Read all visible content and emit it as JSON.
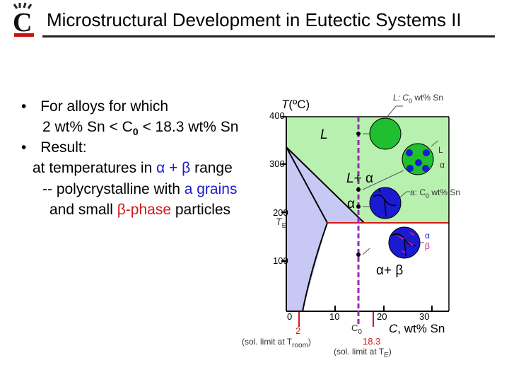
{
  "slide": {
    "title": "Microstructural Development in Eutectic Systems II"
  },
  "bullets": {
    "b1_marker": "•",
    "b1_line1": "For alloys for which",
    "b1_line2_pre": "2 wt% Sn < C",
    "b1_line2_sub": "0",
    "b1_line2_post": " < 18.3 wt% Sn",
    "b2_marker": "•",
    "b2_line1": "Result:",
    "b2_line2_pre": "at temperatures in ",
    "b2_line2_range": "α + β",
    "b2_line2_post": " range",
    "b2_line3_pre": "-- polycrystalline with ",
    "b2_line3_grains": "a grains",
    "b2_line4_pre": "and small ",
    "b2_line4_phase": "β-phase",
    "b2_line4_post": " particles"
  },
  "diagram": {
    "y_axis_label_T": "T",
    "y_axis_label_unit": "(ºC)",
    "y_ticks": [
      "400",
      "300",
      "200",
      "100"
    ],
    "te_label": "T",
    "te_sub": "E",
    "x_ticks": [
      "0",
      "10",
      "20",
      "30"
    ],
    "x_axis_label_c": "C",
    "x_axis_label_rest": ", wt% Sn",
    "c0_label": "C",
    "c0_sub": "0",
    "label_2": "2",
    "sol_limit_room_pre": "(sol. limit at T",
    "sol_limit_room_sub": "room",
    "sol_limit_room_post": ")",
    "label_183": "18.3",
    "sol_limit_te_pre": "(sol. limit at T",
    "sol_limit_te_sub": "E",
    "sol_limit_te_post": ")",
    "region_L": "L",
    "region_L_alpha_L": "L",
    "region_L_alpha_rest": "+ α",
    "region_alpha": "α",
    "region_alpha_beta": "α+ β",
    "callout_L_pre": "L: C",
    "callout_L_sub": "0",
    "callout_L_post": " wt% Sn",
    "callout_La_L": "L",
    "callout_La_a": "α",
    "callout_a_pre": "a: C",
    "callout_a_sub": "0",
    "callout_a_post": " wt% Sn",
    "callout_ab_a": "α",
    "callout_ab_b": "β"
  },
  "colors": {
    "alpha_region": "#c8c8f4",
    "liquid_region": "#b8f0b0",
    "liquid_disc": "#1fbf2f",
    "alpha_grain": "#1a1ad0",
    "beta_particle": "#d01a8a",
    "composition_line": "#9a2ab8",
    "guide_line_red": "#d01a1a"
  }
}
